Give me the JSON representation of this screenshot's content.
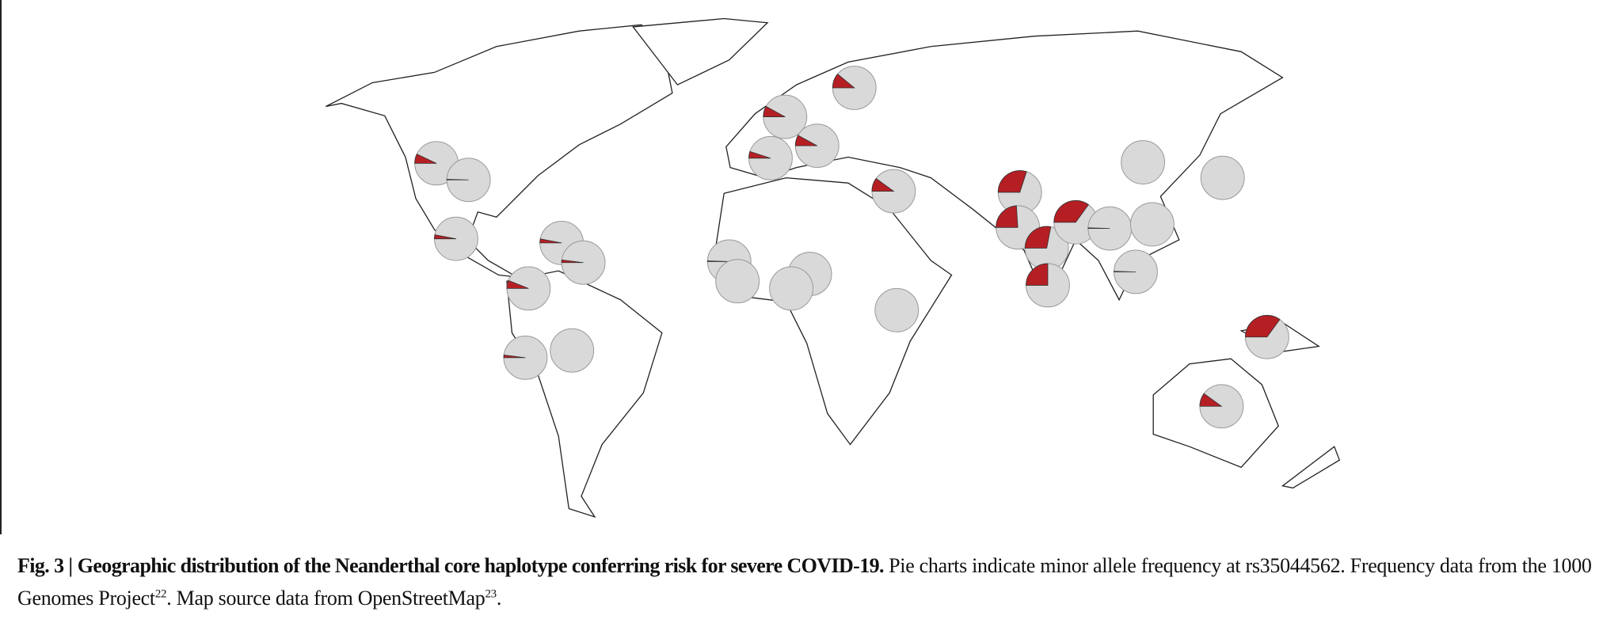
{
  "figure": {
    "caption_label": "Fig. 3 |",
    "caption_title": "Geographic distribution of the Neanderthal core haplotype conferring risk for severe COVID-19.",
    "caption_text_1": "Pie charts indicate minor allele frequency at rs35044562. Frequency data from the 1000 Genomes Project",
    "caption_ref_1": "22",
    "caption_text_2": ". Map source data from OpenStreetMap",
    "caption_ref_2": "23",
    "caption_text_3": ".",
    "pie_colors": {
      "minor": "#b51f24",
      "major": "#d9d9d9"
    },
    "pies": [
      {
        "frequency": 11
      },
      {
        "frequency": 8
      },
      {
        "frequency": 5
      },
      {
        "frequency": 8
      },
      {
        "frequency": 10
      },
      {
        "frequency": 7
      },
      {
        "frequency": 0.5
      },
      {
        "frequency": 3
      },
      {
        "frequency": 3
      },
      {
        "frequency": 2
      },
      {
        "frequency": 6
      },
      {
        "frequency": 2
      },
      {
        "frequency": 0
      },
      {
        "frequency": 0.5
      },
      {
        "frequency": 0
      },
      {
        "frequency": 0
      },
      {
        "frequency": 0
      },
      {
        "frequency": 0
      },
      {
        "frequency": 30
      },
      {
        "frequency": 24
      },
      {
        "frequency": 28
      },
      {
        "frequency": 35
      },
      {
        "frequency": 25
      },
      {
        "frequency": 0.5
      },
      {
        "frequency": 0
      },
      {
        "frequency": 0.5
      },
      {
        "frequency": 0
      },
      {
        "frequency": 0
      },
      {
        "frequency": 35
      },
      {
        "frequency": 10
      }
    ]
  }
}
